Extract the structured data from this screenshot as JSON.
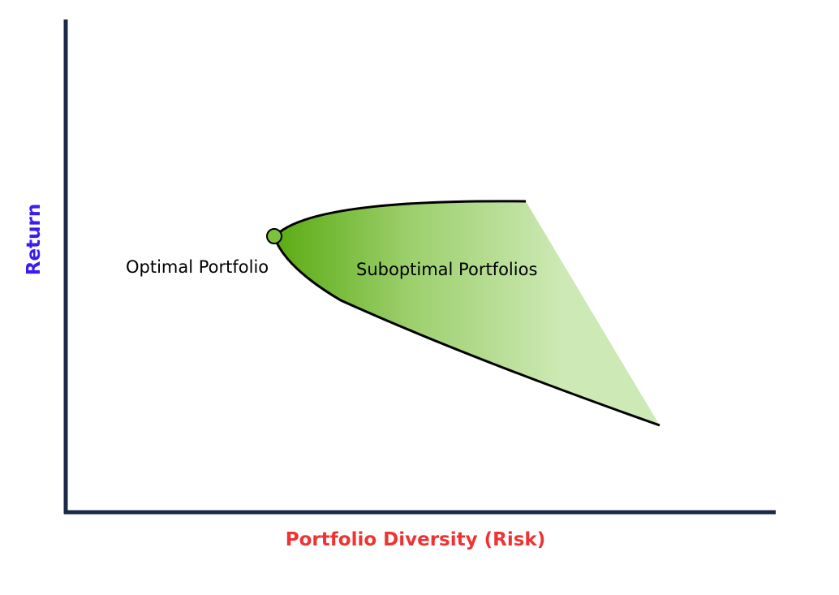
{
  "axes": {
    "y_label": "Return",
    "x_label": "Portfolio Diversity (Risk)",
    "axis_color": "#1c2a4a",
    "y_label_color": "#3b1cf0",
    "x_label_color": "#ee3333"
  },
  "region": {
    "label": "Suboptimal Portfolios",
    "fill_dark": "#5aab12",
    "fill_light": "#cde9b5"
  },
  "point": {
    "label": "Optimal Portfolio",
    "fill_color": "#7dc13d"
  }
}
